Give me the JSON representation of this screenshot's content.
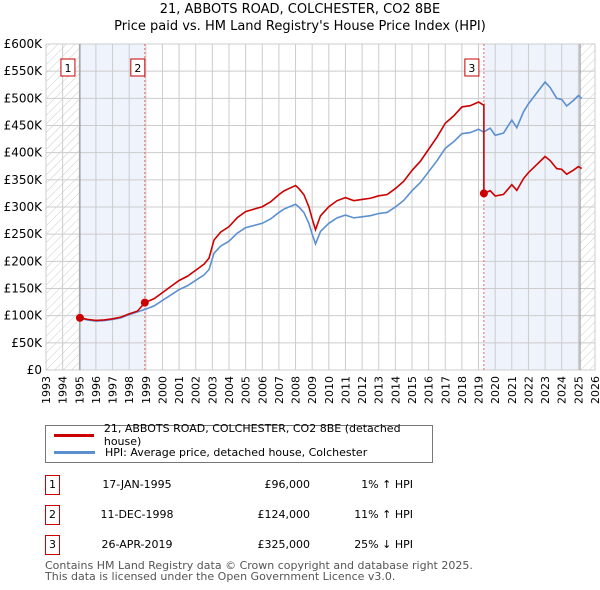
{
  "title": "21, ABBOTS ROAD, COLCHESTER, CO2 8BE",
  "subtitle": "Price paid vs. HM Land Registry's House Price Index (HPI)",
  "chart_data": {
    "type": "line",
    "title": "21, ABBOTS ROAD, COLCHESTER, CO2 8BE — Price paid vs. HM Land Registry's House Price Index (HPI)",
    "xlim": [
      1993,
      2026
    ],
    "ylim": [
      0,
      600000
    ],
    "x_ticks": [
      "1993",
      "1994",
      "1995",
      "1996",
      "1997",
      "1998",
      "1999",
      "2000",
      "2001",
      "2002",
      "2003",
      "2004",
      "2005",
      "2006",
      "2007",
      "2008",
      "2009",
      "2010",
      "2011",
      "2012",
      "2013",
      "2014",
      "2015",
      "2016",
      "2017",
      "2018",
      "2019",
      "2020",
      "2021",
      "2022",
      "2023",
      "2024",
      "2025",
      "2026"
    ],
    "y_ticks": [
      {
        "v": 0,
        "label": "£0"
      },
      {
        "v": 50000,
        "label": "£50K"
      },
      {
        "v": 100000,
        "label": "£100K"
      },
      {
        "v": 150000,
        "label": "£150K"
      },
      {
        "v": 200000,
        "label": "£200K"
      },
      {
        "v": 250000,
        "label": "£250K"
      },
      {
        "v": 300000,
        "label": "£300K"
      },
      {
        "v": 350000,
        "label": "£350K"
      },
      {
        "v": 400000,
        "label": "£400K"
      },
      {
        "v": 450000,
        "label": "£450K"
      },
      {
        "v": 500000,
        "label": "£500K"
      },
      {
        "v": 550000,
        "label": "£550K"
      },
      {
        "v": 600000,
        "label": "£600K"
      }
    ],
    "grid": true,
    "series": [
      {
        "name": "21, ABBOTS ROAD, COLCHESTER, CO2 8BE (detached house)",
        "color": "#cc0000",
        "derived": "hpi indexed from each sale"
      },
      {
        "name": "HPI: Average price, detached house, Colchester",
        "color": "#5b8fd0",
        "x": [
          1995.0,
          1995.5,
          1996,
          1996.5,
          1997,
          1997.5,
          1998,
          1998.5,
          1999,
          1999.5,
          2000,
          2000.5,
          2001,
          2001.5,
          2002,
          2002.5,
          2002.8,
          2003.1,
          2003.5,
          2004,
          2004.5,
          2005,
          2005.5,
          2006,
          2006.5,
          2007,
          2007.3,
          2007.6,
          2008,
          2008.2,
          2008.5,
          2008.8,
          2009.0,
          2009.2,
          2009.5,
          2010,
          2010.5,
          2011,
          2011.5,
          2012,
          2012.5,
          2013,
          2013.5,
          2014,
          2014.5,
          2015,
          2015.5,
          2016,
          2016.5,
          2017,
          2017.5,
          2018,
          2018.5,
          2019,
          2019.3,
          2019.7,
          2020,
          2020.5,
          2021,
          2021.3,
          2021.7,
          2022,
          2022.5,
          2023,
          2023.3,
          2023.7,
          2024,
          2024.3,
          2024.7,
          2025,
          2025.2
        ],
        "y": [
          95000,
          92000,
          90000,
          91000,
          93000,
          96000,
          102000,
          107000,
          112000,
          118000,
          128000,
          138000,
          148000,
          155000,
          165000,
          175000,
          185000,
          215000,
          228000,
          237000,
          252000,
          262000,
          266000,
          270000,
          278000,
          290000,
          296000,
          300000,
          305000,
          300000,
          290000,
          270000,
          250000,
          232000,
          255000,
          270000,
          280000,
          285000,
          280000,
          282000,
          284000,
          288000,
          290000,
          300000,
          312000,
          330000,
          345000,
          365000,
          385000,
          408000,
          420000,
          435000,
          437000,
          443000,
          438000,
          445000,
          432000,
          436000,
          460000,
          446000,
          475000,
          490000,
          510000,
          530000,
          520000,
          500000,
          498000,
          486000,
          496000,
          505000,
          500000
        ]
      }
    ],
    "sales": [
      {
        "id": "1",
        "x": 1995.04,
        "y": 96000,
        "date": "17-JAN-1995",
        "price": "£96,000",
        "hpi": "1% ↑ HPI"
      },
      {
        "id": "2",
        "x": 1998.94,
        "y": 124000,
        "date": "11-DEC-1998",
        "price": "£124,000",
        "hpi": "11% ↑ HPI"
      },
      {
        "id": "3",
        "x": 2019.32,
        "y": 325000,
        "date": "26-APR-2019",
        "price": "£325,000",
        "hpi": "25% ↓ HPI"
      }
    ]
  },
  "legend": {
    "property": "21, ABBOTS ROAD, COLCHESTER, CO2 8BE (detached house)",
    "hpi": "HPI: Average price, detached house, Colchester"
  },
  "footer": {
    "line1": "Contains HM Land Registry data © Crown copyright and database right 2025.",
    "line2": "This data is licensed under the Open Government Licence v3.0."
  }
}
